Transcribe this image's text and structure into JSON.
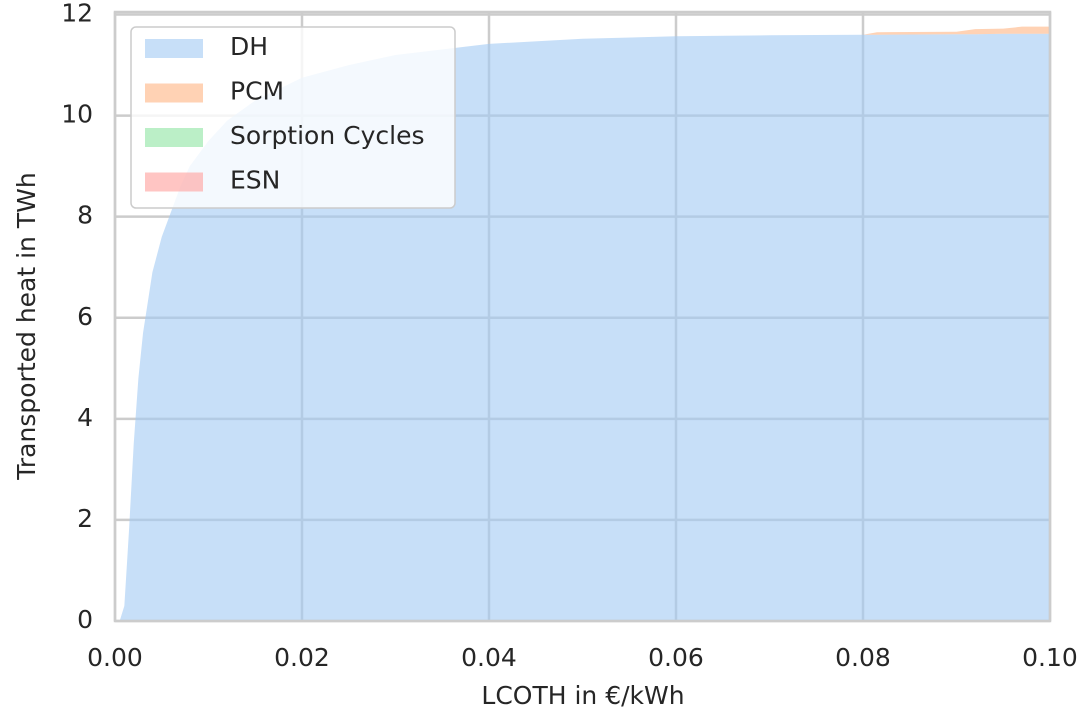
{
  "chart_data": {
    "type": "stacked_area",
    "xlabel": "LCOTH in €/kWh",
    "ylabel": "Transported heat in TWh",
    "x": [
      0,
      0.0005,
      0.001,
      0.0015,
      0.002,
      0.0025,
      0.003,
      0.0035,
      0.004,
      0.005,
      0.006,
      0.007,
      0.008,
      0.01,
      0.012,
      0.015,
      0.02,
      0.025,
      0.03,
      0.04,
      0.05,
      0.06,
      0.07,
      0.08,
      0.0815,
      0.09,
      0.092,
      0.095,
      0.097,
      0.1
    ],
    "series": [
      {
        "name": "DH",
        "color": "#a1c9f4",
        "values": [
          0,
          0,
          0.3,
          1.8,
          3.5,
          4.8,
          5.7,
          6.3,
          6.9,
          7.6,
          8.1,
          8.6,
          9.0,
          9.5,
          9.9,
          10.3,
          10.75,
          11.0,
          11.2,
          11.42,
          11.52,
          11.57,
          11.59,
          11.6,
          11.6,
          11.61,
          11.61,
          11.62,
          11.62,
          11.62
        ]
      },
      {
        "name": "PCM",
        "color": "#ffb482",
        "values": [
          0,
          0,
          0,
          0,
          0,
          0,
          0,
          0,
          0,
          0,
          0,
          0,
          0,
          0,
          0,
          0,
          0,
          0,
          0,
          0,
          0,
          0,
          0,
          0,
          0.05,
          0.05,
          0.1,
          0.1,
          0.14,
          0.14
        ]
      },
      {
        "name": "Sorption Cycles",
        "color": "#8de5a1",
        "values": [
          0,
          0,
          0,
          0,
          0,
          0,
          0,
          0,
          0,
          0,
          0,
          0,
          0,
          0,
          0,
          0,
          0,
          0,
          0,
          0,
          0,
          0,
          0,
          0,
          0,
          0,
          0,
          0,
          0,
          0
        ]
      },
      {
        "name": "ESN",
        "color": "#ff9f9b",
        "values": [
          0,
          0,
          0,
          0,
          0,
          0,
          0,
          0,
          0,
          0,
          0,
          0,
          0,
          0,
          0,
          0,
          0,
          0,
          0,
          0,
          0,
          0,
          0,
          0,
          0,
          0,
          0,
          0,
          0,
          0
        ]
      }
    ],
    "xlim": [
      0,
      0.1
    ],
    "xticks": [
      {
        "value": 0,
        "label": "0.00"
      },
      0.02,
      0.04,
      0.06,
      0.08,
      {
        "value": 0.1,
        "label": "0.10"
      }
    ],
    "ylim": [
      0,
      12.05
    ],
    "yticks": [
      0,
      2,
      4,
      6,
      8,
      10,
      12
    ],
    "grid": true,
    "legend": "upper left"
  }
}
